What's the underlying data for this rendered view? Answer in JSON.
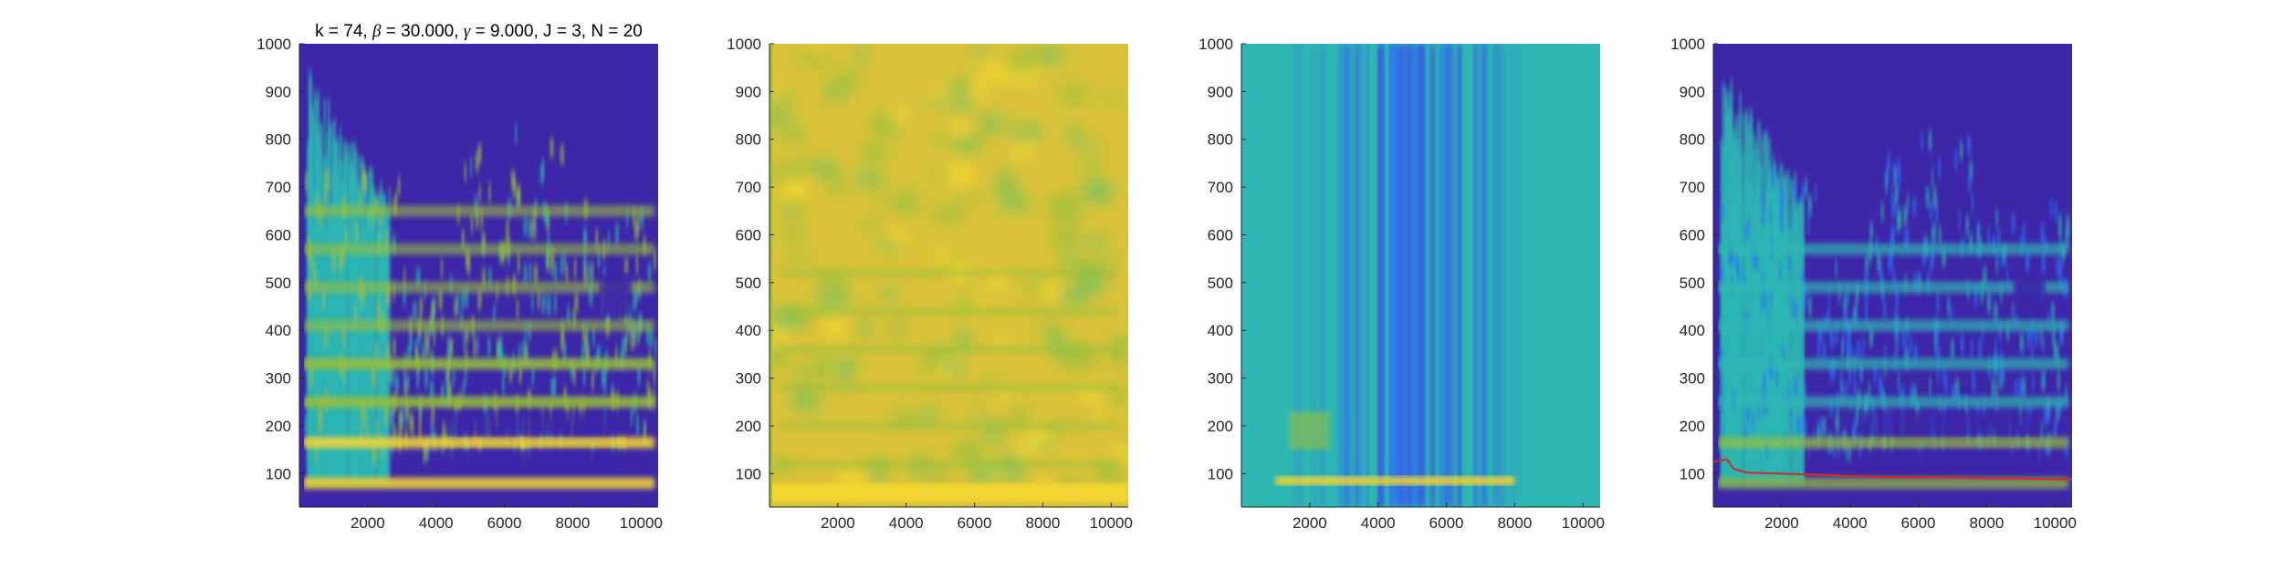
{
  "figure": {
    "title_parts": [
      {
        "t": "k = 74, ",
        "math": false
      },
      {
        "t": "β",
        "math": true
      },
      {
        "t": " = 30.000, ",
        "math": false
      },
      {
        "t": "γ",
        "math": true
      },
      {
        "t": " = 9.000, J = 3, N = 20",
        "math": false
      }
    ]
  },
  "colors": {
    "parula_dark": "#3e26a8",
    "parula_blue": "#2c71f5",
    "parula_cyan": "#2eb7b2",
    "parula_green": "#97c03b",
    "parula_yellow": "#f6d731",
    "ridge_red": "#d62b1f",
    "axis": "#262626"
  },
  "chart_data": [
    {
      "type": "heatmap",
      "panel": "raw spectrogram with harmonic ridges",
      "xlim": [
        0,
        10500
      ],
      "ylim": [
        30,
        1000
      ],
      "xticks": [
        2000,
        4000,
        6000,
        8000,
        10000
      ],
      "yticks": [
        100,
        200,
        300,
        400,
        500,
        600,
        700,
        800,
        900,
        1000
      ],
      "harmonic_bands_y": [
        80,
        165,
        250,
        330,
        410,
        490,
        570,
        650
      ],
      "background_color_region": "upper area above ~650 at x>2700 is dark (low)"
    },
    {
      "type": "heatmap",
      "panel": "smoothed spectrogram",
      "xlim": [
        0,
        10500
      ],
      "ylim": [
        30,
        1000
      ],
      "xticks": [
        2000,
        4000,
        6000,
        8000,
        10000
      ],
      "yticks": [
        100,
        200,
        300,
        400,
        500,
        600,
        700,
        800,
        900,
        1000
      ]
    },
    {
      "type": "heatmap",
      "panel": "cepstral / pitch representation",
      "xlim": [
        0,
        10500
      ],
      "ylim": [
        30,
        1000
      ],
      "xticks": [
        2000,
        4000,
        6000,
        8000,
        10000
      ],
      "yticks": [
        100,
        200,
        300,
        400,
        500,
        600,
        700,
        800,
        900,
        1000
      ],
      "bright_band_y": 85,
      "bright_band_x_range": [
        1000,
        8000
      ]
    },
    {
      "type": "heatmap",
      "panel": "spectrogram with tracked f0 line",
      "xlim": [
        0,
        10500
      ],
      "ylim": [
        30,
        1000
      ],
      "xticks": [
        2000,
        4000,
        6000,
        8000,
        10000
      ],
      "yticks": [
        100,
        200,
        300,
        400,
        500,
        600,
        700,
        800,
        900,
        1000
      ],
      "f0_track": {
        "x": [
          0,
          400,
          600,
          1000,
          2000,
          3000,
          4000,
          5000,
          6000,
          7000,
          8000,
          9000,
          10000,
          10500
        ],
        "y": [
          125,
          130,
          110,
          102,
          100,
          98,
          95,
          93,
          92,
          92,
          90,
          90,
          88,
          88
        ]
      }
    }
  ]
}
